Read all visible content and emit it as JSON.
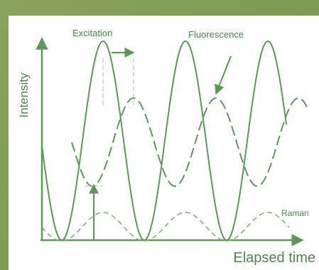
{
  "labels": {
    "y_axis": "Intensity",
    "x_axis": "Elapsed time",
    "excitation": "Excitation",
    "fluorescence": "Fluorescence",
    "raman": "Raman"
  },
  "colors": {
    "background": "#7f9a54",
    "line": "#5a9a55",
    "dashed": "#6aa565",
    "text": "#4a8a45"
  }
}
